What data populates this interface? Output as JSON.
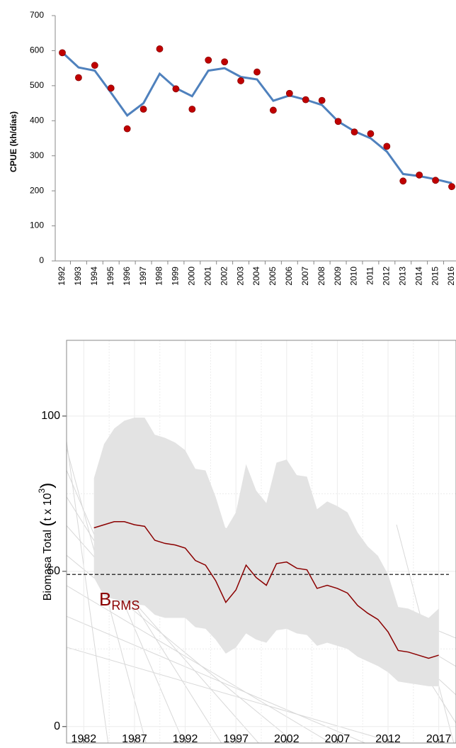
{
  "chart_data": [
    {
      "type": "line",
      "ylabel": "CPUE (kh/días)",
      "categories": [
        "1992",
        "1993",
        "1994",
        "1995",
        "1996",
        "1997",
        "1998",
        "1999",
        "2000",
        "2001",
        "2002",
        "2003",
        "2004",
        "2005",
        "2006",
        "2007",
        "2008",
        "2009",
        "2010",
        "2011",
        "2012",
        "2013",
        "2014",
        "2015",
        "2016"
      ],
      "ylim": [
        0,
        700
      ],
      "yticks": [
        0,
        100,
        200,
        300,
        400,
        500,
        600,
        700
      ],
      "series": [
        {
          "color": "#4f81bd",
          "line": true,
          "marker": false,
          "values": [
            595,
            552,
            543,
            480,
            415,
            450,
            534,
            493,
            470,
            543,
            550,
            525,
            518,
            457,
            472,
            460,
            445,
            398,
            370,
            350,
            312,
            248,
            242,
            233,
            222
          ]
        },
        {
          "color": "#c00000",
          "line": false,
          "marker": true,
          "values": [
            594,
            523,
            558,
            493,
            377,
            433,
            605,
            491,
            433,
            573,
            568,
            514,
            539,
            430,
            478,
            460,
            458,
            398,
            368,
            363,
            327,
            228,
            245,
            230,
            212
          ]
        }
      ]
    },
    {
      "type": "line",
      "ylabel": {
        "text": "Biomasa Total ",
        "open": "(",
        "unit": "t x 10",
        "sup": "3",
        "close": ")"
      },
      "annotation": {
        "text": "B",
        "sub": "RMS"
      },
      "xlim": [
        1980.3,
        2018.7
      ],
      "xticks": [
        1982,
        1987,
        1992,
        1997,
        2002,
        2007,
        2012,
        2017
      ],
      "ylim": [
        -5.3,
        124.4
      ],
      "yticks": [
        0,
        50,
        100
      ],
      "grid": true,
      "hline": {
        "value": 49,
        "color": "#000",
        "dashed": true
      },
      "x": [
        1983,
        1984,
        1985,
        1986,
        1987,
        1988,
        1989,
        1990,
        1991,
        1992,
        1993,
        1994,
        1995,
        1996,
        1997,
        1998,
        1999,
        2000,
        2001,
        2002,
        2003,
        2004,
        2005,
        2006,
        2007,
        2008,
        2009,
        2010,
        2011,
        2012,
        2013,
        2014,
        2015,
        2016,
        2017
      ],
      "band": {
        "color": "#e3e3e3",
        "upper": [
          80,
          91,
          96,
          98.5,
          99.5,
          99.5,
          94,
          93,
          91.5,
          89,
          83,
          82.5,
          74,
          63.5,
          69,
          84.5,
          76,
          72,
          85,
          86,
          81,
          80.5,
          70,
          72.5,
          71,
          69,
          62.5,
          58,
          55,
          49,
          38.5,
          38,
          36.5,
          35,
          38
        ],
        "lower": [
          48,
          42,
          41,
          40,
          39.5,
          39,
          36,
          35,
          35,
          35,
          32,
          31.5,
          28,
          23.5,
          25.5,
          30,
          28,
          27,
          31,
          31.5,
          30,
          29.5,
          26,
          27,
          26,
          25,
          22.5,
          21,
          19.5,
          17.5,
          14.5,
          14,
          13.5,
          13,
          13
        ]
      },
      "series": [
        {
          "color": "#8b0000",
          "values": [
            64,
            65,
            66,
            66,
            65,
            64.5,
            60,
            59,
            58.5,
            57.5,
            53.5,
            52,
            47,
            40,
            44,
            52,
            48,
            45.5,
            52.5,
            53,
            51,
            50.5,
            44.5,
            45.5,
            44.5,
            43,
            39,
            36.5,
            34.5,
            30.5,
            24.5,
            24,
            23,
            22,
            23
          ]
        }
      ]
    }
  ]
}
